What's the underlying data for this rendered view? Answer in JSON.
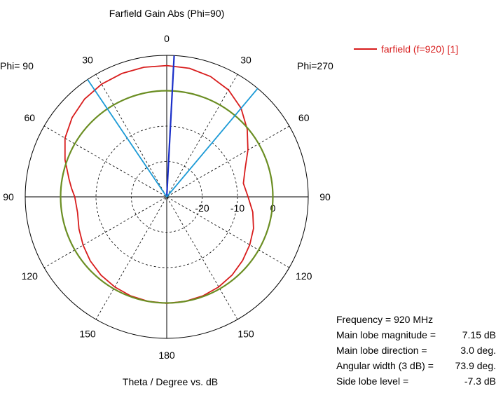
{
  "chart_data": {
    "type": "polar",
    "title": "Farfield Gain Abs (Phi=90)",
    "xlabel": "Theta / Degree vs. dB",
    "left_side_label": "Phi= 90",
    "right_side_label": "Phi=270",
    "angle_tick_labels": [
      "0",
      "30",
      "60",
      "90",
      "120",
      "150",
      "180",
      "150",
      "120",
      "90",
      "60",
      "30"
    ],
    "radial_tick_labels": [
      "-20",
      "-10",
      "0"
    ],
    "radial_range_db": [
      -30,
      10
    ],
    "legend": {
      "label": "farfield (f=920) [1]",
      "placement": "top-right",
      "color": "#d81c1c"
    },
    "series": [
      {
        "name": "farfield (f=920) [1]",
        "color": "#d81c1c",
        "theta_deg": [
          0,
          10,
          20,
          30,
          40,
          50,
          60,
          70,
          80,
          90,
          100,
          110,
          120,
          130,
          140,
          150,
          160,
          170,
          180,
          190,
          200,
          210,
          220,
          230,
          240,
          250,
          260,
          270,
          275,
          280,
          290,
          300,
          310,
          320,
          330,
          340,
          350
        ],
        "gain_dbi": [
          7.1,
          6.9,
          6.2,
          4.9,
          2.7,
          -0.3,
          -3.5,
          -6.4,
          -8.0,
          -7.0,
          -5.3,
          -3.9,
          -2.9,
          -2.0,
          -1.2,
          -0.6,
          -0.2,
          0.0,
          0.1,
          0.0,
          -0.2,
          -0.6,
          -1.1,
          -1.8,
          -2.7,
          -3.6,
          -4.4,
          -4.0,
          -3.0,
          -2.0,
          0.6,
          3.2,
          4.9,
          6.1,
          6.8,
          7.1,
          7.2
        ]
      },
      {
        "name": "",
        "color": "#6b8e23",
        "theta_deg": [
          0,
          90,
          180,
          270
        ],
        "gain_dbi": [
          0,
          0,
          0,
          0
        ]
      }
    ],
    "main_lobe_direction_deg": 3.0,
    "beamwidth_edges_deg": [
      -34,
      40
    ],
    "beam_colors": {
      "main": "#1a2fc9",
      "width": "#1b9ad6"
    }
  },
  "info": {
    "frequency": {
      "label": "Frequency = 920 MHz",
      "value": ""
    },
    "magnitude": {
      "label": "Main lobe magnitude =",
      "value": "7.15 dB"
    },
    "direction": {
      "label": "Main lobe direction =",
      "value": "3.0 deg."
    },
    "width": {
      "label": "Angular width (3 dB) =",
      "value": "73.9 deg."
    },
    "sidelobe": {
      "label": "Side lobe level =",
      "value": "-7.3 dB"
    }
  }
}
